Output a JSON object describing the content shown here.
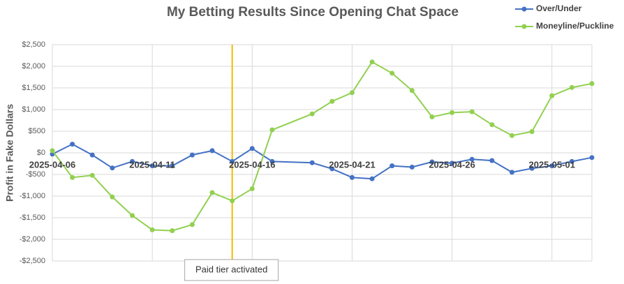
{
  "chart_data": {
    "type": "line",
    "title": "My Betting Results Since Opening Chat Space",
    "y_label": "Profit in Fake Dollars",
    "x": [
      "2025-04-06",
      "2025-04-07",
      "2025-04-08",
      "2025-04-09",
      "2025-04-10",
      "2025-04-11",
      "2025-04-12",
      "2025-04-13",
      "2025-04-14",
      "2025-04-15",
      "2025-04-16",
      "2025-04-17",
      "2025-04-19",
      "2025-04-20",
      "2025-04-21",
      "2025-04-22",
      "2025-04-23",
      "2025-04-24",
      "2025-04-25",
      "2025-04-26",
      "2025-04-27",
      "2025-04-28",
      "2025-04-29",
      "2025-04-30",
      "2025-05-01",
      "2025-05-02",
      "2025-05-03"
    ],
    "series": [
      {
        "name": "Over/Under",
        "color": "#4472c4",
        "values": [
          -30,
          200,
          -50,
          -350,
          -200,
          -300,
          -300,
          -50,
          50,
          -200,
          100,
          -200,
          -230,
          -370,
          -570,
          -600,
          -300,
          -330,
          -210,
          -240,
          -150,
          -180,
          -450,
          -360,
          -300,
          -200,
          -110
        ]
      },
      {
        "name": "Moneyline/Puckline",
        "color": "#92d050",
        "values": [
          50,
          -570,
          -520,
          -1020,
          -1450,
          -1780,
          -1800,
          -1660,
          -920,
          -1110,
          -830,
          530,
          900,
          1190,
          1390,
          2100,
          1840,
          1440,
          830,
          930,
          950,
          650,
          400,
          490,
          1320,
          1510,
          1600
        ]
      }
    ],
    "xlim": [
      "2025-04-06",
      "2025-05-03"
    ],
    "xticks": [
      "2025-04-06",
      "2025-04-11",
      "2025-04-16",
      "2025-04-21",
      "2025-04-26",
      "2025-05-01"
    ],
    "ylim": [
      -2500,
      2500
    ],
    "yticks": [
      {
        "value": -2500,
        "label": "-$2,500"
      },
      {
        "value": -2000,
        "label": "-$2,000"
      },
      {
        "value": -1500,
        "label": "-$1,500"
      },
      {
        "value": -1000,
        "label": "-$1,000"
      },
      {
        "value": -500,
        "label": "-$500"
      },
      {
        "value": 0,
        "label": "$0"
      },
      {
        "value": 500,
        "label": "$500"
      },
      {
        "value": 1000,
        "label": "$1,000"
      },
      {
        "value": 1500,
        "label": "$1,500"
      },
      {
        "value": 2000,
        "label": "$2,000"
      },
      {
        "value": 2500,
        "label": "$2,500"
      }
    ],
    "negative_tick_color": "#c00000",
    "grid": true,
    "legend": "top-right",
    "annotation": {
      "text": "Paid tier activated",
      "x": "2025-04-15",
      "color": "#f5b800"
    }
  }
}
